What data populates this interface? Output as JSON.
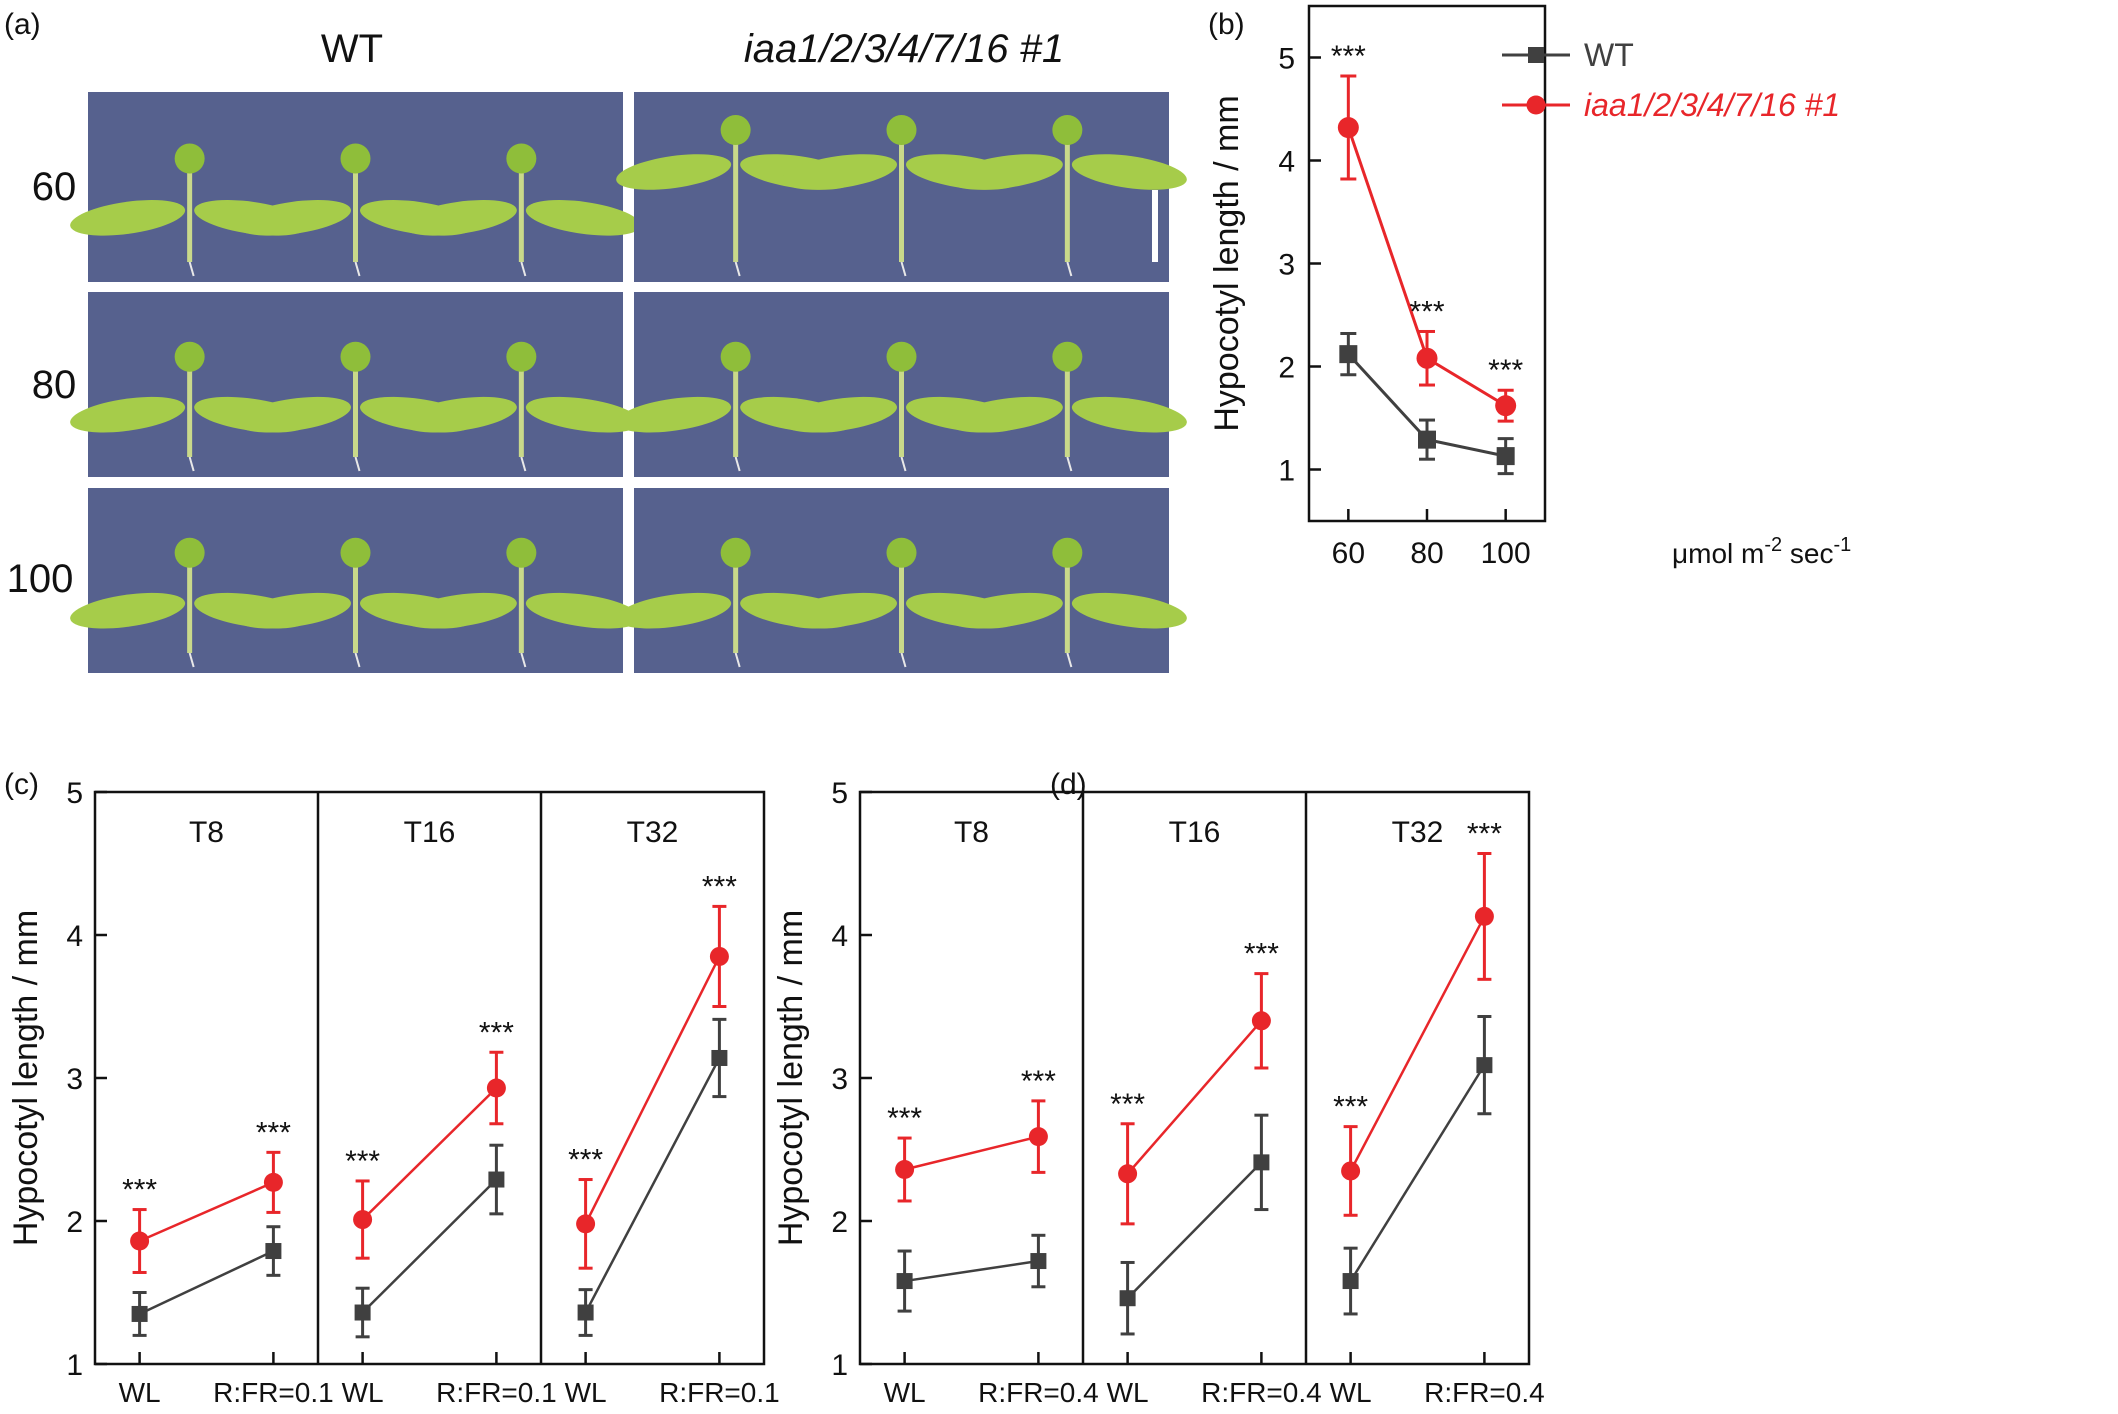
{
  "colors": {
    "wt": "#404040",
    "mutant": "#e8262a",
    "photo_bg": "#56618e",
    "leaf": "#a6cc4a",
    "stem": "#c9d98a"
  },
  "panel_a": {
    "label": "(a)",
    "col_labels": [
      "WT",
      "iaa1/2/3/4/7/16 #1"
    ],
    "row_labels": [
      "60",
      "80",
      "100"
    ]
  },
  "chart_data": [
    {
      "panel": "(b)",
      "type": "line",
      "x": [
        60,
        80,
        100
      ],
      "xlim": [
        50,
        110
      ],
      "ylim": [
        0.5,
        5.5
      ],
      "yticks": [
        1,
        2,
        3,
        4,
        5
      ],
      "ylabel": "Hypocotyl length / mm",
      "xunit": "μmol m",
      "xunit_sup1": "-2",
      "xunit_mid": " sec",
      "xunit_sup2": "-1",
      "legend_position": "top-right",
      "series": [
        {
          "name": "WT",
          "key": "wt",
          "values": [
            2.12,
            1.29,
            1.13
          ],
          "errors": [
            0.2,
            0.19,
            0.17
          ]
        },
        {
          "name": "iaa1/2/3/4/7/16 #1",
          "key": "mutant",
          "values": [
            4.32,
            2.08,
            1.62
          ],
          "errors": [
            0.5,
            0.26,
            0.15
          ]
        }
      ],
      "annotations": [
        {
          "x": 60,
          "text": "***"
        },
        {
          "x": 80,
          "text": "***"
        },
        {
          "x": 100,
          "text": "***"
        }
      ]
    },
    {
      "panel": "(c)",
      "type": "line",
      "ylabel": "Hypocotyl length / mm",
      "ylim": [
        1,
        5
      ],
      "yticks": [
        1,
        2,
        3,
        4,
        5
      ],
      "categories": [
        "WL",
        "R:FR=0.1"
      ],
      "groups": [
        {
          "title": "T8",
          "wt": [
            1.35,
            1.79
          ],
          "wt_err": [
            0.15,
            0.17
          ],
          "mutant": [
            1.86,
            2.27
          ],
          "mutant_err": [
            0.22,
            0.21
          ],
          "stars": [
            "***",
            "***"
          ]
        },
        {
          "title": "T16",
          "wt": [
            1.36,
            2.29
          ],
          "wt_err": [
            0.17,
            0.24
          ],
          "mutant": [
            2.01,
            2.93
          ],
          "mutant_err": [
            0.27,
            0.25
          ],
          "stars": [
            "***",
            "***"
          ]
        },
        {
          "title": "T32",
          "wt": [
            1.36,
            3.14
          ],
          "wt_err": [
            0.16,
            0.27
          ],
          "mutant": [
            1.98,
            3.85
          ],
          "mutant_err": [
            0.31,
            0.35
          ],
          "stars": [
            "***",
            "***"
          ]
        }
      ]
    },
    {
      "panel": "(d)",
      "type": "line",
      "ylabel": "Hypocotyl length / mm",
      "ylim": [
        1,
        5
      ],
      "yticks": [
        1,
        2,
        3,
        4,
        5
      ],
      "categories": [
        "WL",
        "R:FR=0.4"
      ],
      "groups": [
        {
          "title": "T8",
          "wt": [
            1.58,
            1.72
          ],
          "wt_err": [
            0.21,
            0.18
          ],
          "mutant": [
            2.36,
            2.59
          ],
          "mutant_err": [
            0.22,
            0.25
          ],
          "stars": [
            "***",
            "***"
          ]
        },
        {
          "title": "T16",
          "wt": [
            1.46,
            2.41
          ],
          "wt_err": [
            0.25,
            0.33
          ],
          "mutant": [
            2.33,
            3.4
          ],
          "mutant_err": [
            0.35,
            0.33
          ],
          "stars": [
            "***",
            "***"
          ]
        },
        {
          "title": "T32",
          "wt": [
            1.58,
            3.09
          ],
          "wt_err": [
            0.23,
            0.34
          ],
          "mutant": [
            2.35,
            4.13
          ],
          "mutant_err": [
            0.31,
            0.44
          ],
          "stars": [
            "***",
            "***"
          ]
        }
      ]
    }
  ]
}
